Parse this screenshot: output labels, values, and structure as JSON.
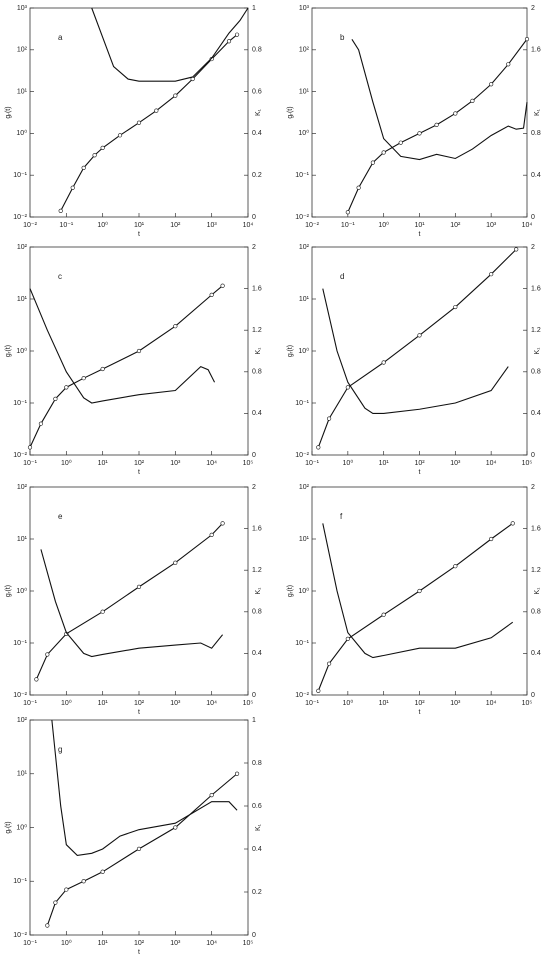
{
  "chart_data": [
    {
      "type": "line",
      "annotation": "a",
      "x_label": "t",
      "y_label": "gᵣ(t)",
      "y2_label": "K₁",
      "log_x": true,
      "log_y": true,
      "xlim": [
        0.01,
        10000
      ],
      "xticks": [
        {
          "value": 0.01,
          "label": "10⁻²"
        },
        {
          "value": 0.1,
          "label": "10⁻¹"
        },
        {
          "value": 1,
          "label": "10⁰"
        },
        {
          "value": 10,
          "label": "10¹"
        },
        {
          "value": 100,
          "label": "10²"
        },
        {
          "value": 1000,
          "label": "10³"
        },
        {
          "value": 10000,
          "label": "10⁴"
        }
      ],
      "ylim": [
        0.01,
        1000
      ],
      "yticks": [
        {
          "value": 0.01,
          "label": "10⁻²"
        },
        {
          "value": 0.1,
          "label": "10⁻¹"
        },
        {
          "value": 1,
          "label": "10⁰"
        },
        {
          "value": 10,
          "label": "10¹"
        },
        {
          "value": 100,
          "label": "10²"
        },
        {
          "value": 1000,
          "label": "10³"
        }
      ],
      "y2lim": [
        0,
        1
      ],
      "y2ticks": [
        0,
        0.2,
        0.4,
        0.6,
        0.8,
        1
      ],
      "series": [
        {
          "color": "#111111",
          "markers": true,
          "x": [
            0.07,
            0.15,
            0.3,
            0.6,
            1,
            3,
            10,
            30,
            100,
            300,
            1000,
            3000,
            5000
          ],
          "values": [
            0.014,
            0.05,
            0.15,
            0.3,
            0.45,
            0.9,
            1.8,
            3.5,
            8,
            20,
            60,
            160,
            230
          ]
        },
        {
          "color": "#111111",
          "axis": "y2",
          "x": [
            0.5,
            1,
            2,
            5,
            10,
            30,
            100,
            300,
            1000,
            3000,
            6000,
            10000
          ],
          "values": [
            1.0,
            0.86,
            0.72,
            0.66,
            0.65,
            0.65,
            0.65,
            0.67,
            0.76,
            0.88,
            0.94,
            1.0
          ]
        }
      ]
    },
    {
      "type": "line",
      "annotation": "b",
      "x_label": "t",
      "y_label": "gᵣ(t)",
      "y2_label": "K₁",
      "log_x": true,
      "log_y": true,
      "xlim": [
        0.01,
        10000
      ],
      "xticks": [
        {
          "value": 0.01,
          "label": "10⁻²"
        },
        {
          "value": 0.1,
          "label": "10⁻¹"
        },
        {
          "value": 1,
          "label": "10⁰"
        },
        {
          "value": 10,
          "label": "10¹"
        },
        {
          "value": 100,
          "label": "10²"
        },
        {
          "value": 1000,
          "label": "10³"
        },
        {
          "value": 10000,
          "label": "10⁴"
        }
      ],
      "ylim": [
        0.01,
        1000
      ],
      "yticks": [
        {
          "value": 0.01,
          "label": "10⁻²"
        },
        {
          "value": 0.1,
          "label": "10⁻¹"
        },
        {
          "value": 1,
          "label": "10⁰"
        },
        {
          "value": 10,
          "label": "10¹"
        },
        {
          "value": 100,
          "label": "10²"
        },
        {
          "value": 1000,
          "label": "10³"
        }
      ],
      "y2lim": [
        0,
        2
      ],
      "y2ticks": [
        0,
        0.4,
        0.8,
        1.6,
        2
      ],
      "series": [
        {
          "color": "#111111",
          "markers": true,
          "x": [
            0.1,
            0.2,
            0.5,
            1,
            3,
            10,
            30,
            100,
            300,
            1000,
            3000,
            10000
          ],
          "values": [
            0.013,
            0.05,
            0.2,
            0.35,
            0.6,
            1.0,
            1.6,
            3,
            6,
            15,
            45,
            180
          ]
        },
        {
          "color": "#111111",
          "axis": "y2",
          "x": [
            0.13,
            0.2,
            0.5,
            1,
            3,
            10,
            30,
            100,
            300,
            1000,
            3000,
            5000,
            8000,
            10000
          ],
          "values": [
            1.7,
            1.6,
            1.1,
            0.75,
            0.58,
            0.55,
            0.6,
            0.56,
            0.65,
            0.78,
            0.87,
            0.84,
            0.85,
            1.1
          ]
        }
      ]
    },
    {
      "type": "line",
      "annotation": "c",
      "x_label": "t",
      "y_label": "gᵣ(t)",
      "y2_label": "K₁",
      "log_x": true,
      "log_y": true,
      "xlim": [
        0.1,
        100000
      ],
      "xticks": [
        {
          "value": 0.1,
          "label": "10⁻¹"
        },
        {
          "value": 1,
          "label": "10⁰"
        },
        {
          "value": 10,
          "label": "10¹"
        },
        {
          "value": 100,
          "label": "10²"
        },
        {
          "value": 1000,
          "label": "10³"
        },
        {
          "value": 10000,
          "label": "10⁴"
        },
        {
          "value": 100000,
          "label": "10⁵"
        }
      ],
      "ylim": [
        0.01,
        100
      ],
      "yticks": [
        {
          "value": 0.01,
          "label": "10⁻²"
        },
        {
          "value": 0.1,
          "label": "10⁻¹"
        },
        {
          "value": 1,
          "label": "10⁰"
        },
        {
          "value": 10,
          "label": "10¹"
        },
        {
          "value": 100,
          "label": "10²"
        }
      ],
      "y2lim": [
        0,
        2
      ],
      "y2ticks": [
        0,
        0.4,
        0.8,
        1.2,
        1.6,
        2
      ],
      "series": [
        {
          "color": "#111111",
          "markers": true,
          "x": [
            0.1,
            0.2,
            0.5,
            1,
            3,
            10,
            100,
            1000,
            10000,
            20000
          ],
          "values": [
            0.014,
            0.04,
            0.12,
            0.2,
            0.3,
            0.45,
            1,
            3,
            12,
            18
          ]
        },
        {
          "color": "#111111",
          "axis": "y2",
          "x": [
            0.1,
            0.3,
            1,
            3,
            5,
            10,
            100,
            1000,
            5000,
            8000,
            12000
          ],
          "values": [
            1.6,
            1.2,
            0.8,
            0.55,
            0.5,
            0.52,
            0.58,
            0.62,
            0.85,
            0.82,
            0.7
          ]
        }
      ]
    },
    {
      "type": "line",
      "annotation": "d",
      "x_label": "t",
      "y_label": "gᵣ(t)",
      "y2_label": "K₁",
      "log_x": true,
      "log_y": true,
      "xlim": [
        0.1,
        100000
      ],
      "xticks": [
        {
          "value": 0.1,
          "label": "10⁻¹"
        },
        {
          "value": 1,
          "label": "10⁰"
        },
        {
          "value": 10,
          "label": "10¹"
        },
        {
          "value": 100,
          "label": "10²"
        },
        {
          "value": 1000,
          "label": "10³"
        },
        {
          "value": 10000,
          "label": "10⁴"
        },
        {
          "value": 100000,
          "label": "10⁵"
        }
      ],
      "ylim": [
        0.01,
        100
      ],
      "yticks": [
        {
          "value": 0.01,
          "label": "10⁻²"
        },
        {
          "value": 0.1,
          "label": "10⁻¹"
        },
        {
          "value": 1,
          "label": "10⁰"
        },
        {
          "value": 10,
          "label": "10¹"
        },
        {
          "value": 100,
          "label": "10²"
        }
      ],
      "y2lim": [
        0,
        2
      ],
      "y2ticks": [
        0,
        0.4,
        0.8,
        1.2,
        1.6,
        2
      ],
      "series": [
        {
          "color": "#111111",
          "markers": true,
          "x": [
            0.15,
            0.3,
            1,
            10,
            100,
            1000,
            10000,
            50000
          ],
          "values": [
            0.014,
            0.05,
            0.2,
            0.6,
            2,
            7,
            30,
            90
          ]
        },
        {
          "color": "#111111",
          "axis": "y2",
          "x": [
            0.2,
            0.5,
            1,
            3,
            5,
            10,
            100,
            1000,
            10000,
            30000
          ],
          "values": [
            1.6,
            1.0,
            0.7,
            0.45,
            0.4,
            0.4,
            0.44,
            0.5,
            0.62,
            0.85
          ]
        }
      ]
    },
    {
      "type": "line",
      "annotation": "e",
      "x_label": "t",
      "y_label": "gᵣ(t)",
      "y2_label": "K₁",
      "log_x": true,
      "log_y": true,
      "xlim": [
        0.1,
        100000
      ],
      "xticks": [
        {
          "value": 0.1,
          "label": "10⁻¹"
        },
        {
          "value": 1,
          "label": "10⁰"
        },
        {
          "value": 10,
          "label": "10¹"
        },
        {
          "value": 100,
          "label": "10²"
        },
        {
          "value": 1000,
          "label": "10³"
        },
        {
          "value": 10000,
          "label": "10⁴"
        },
        {
          "value": 100000,
          "label": "10⁵"
        }
      ],
      "ylim": [
        0.01,
        100
      ],
      "yticks": [
        {
          "value": 0.01,
          "label": "10⁻²"
        },
        {
          "value": 0.1,
          "label": "10⁻¹"
        },
        {
          "value": 1,
          "label": "10⁰"
        },
        {
          "value": 10,
          "label": "10¹"
        },
        {
          "value": 100,
          "label": "10²"
        }
      ],
      "y2lim": [
        0,
        2
      ],
      "y2ticks": [
        0,
        0.4,
        0.8,
        1.2,
        1.6,
        2
      ],
      "series": [
        {
          "color": "#111111",
          "markers": true,
          "x": [
            0.15,
            0.3,
            1,
            10,
            100,
            1000,
            10000,
            20000
          ],
          "values": [
            0.02,
            0.06,
            0.15,
            0.4,
            1.2,
            3.5,
            12,
            20
          ]
        },
        {
          "color": "#111111",
          "axis": "y2",
          "x": [
            0.2,
            0.5,
            1,
            3,
            5,
            10,
            100,
            1000,
            5000,
            10000,
            20000
          ],
          "values": [
            1.4,
            0.9,
            0.6,
            0.4,
            0.37,
            0.39,
            0.45,
            0.48,
            0.5,
            0.45,
            0.58
          ]
        }
      ]
    },
    {
      "type": "line",
      "annotation": "f",
      "x_label": "t",
      "y_label": "gᵣ(t)",
      "y2_label": "K₁",
      "log_x": true,
      "log_y": true,
      "xlim": [
        0.1,
        100000
      ],
      "xticks": [
        {
          "value": 0.1,
          "label": "10⁻¹"
        },
        {
          "value": 1,
          "label": "10⁰"
        },
        {
          "value": 10,
          "label": "10¹"
        },
        {
          "value": 100,
          "label": "10²"
        },
        {
          "value": 1000,
          "label": "10³"
        },
        {
          "value": 10000,
          "label": "10⁴"
        },
        {
          "value": 100000,
          "label": "10⁵"
        }
      ],
      "ylim": [
        0.01,
        100
      ],
      "yticks": [
        {
          "value": 0.01,
          "label": "10⁻²"
        },
        {
          "value": 0.1,
          "label": "10⁻¹"
        },
        {
          "value": 1,
          "label": "10⁰"
        },
        {
          "value": 10,
          "label": "10¹"
        },
        {
          "value": 100,
          "label": "10²"
        }
      ],
      "y2lim": [
        0,
        2
      ],
      "y2ticks": [
        0,
        0.4,
        0.8,
        1.2,
        1.6,
        2
      ],
      "series": [
        {
          "color": "#111111",
          "markers": true,
          "x": [
            0.15,
            0.3,
            1,
            10,
            100,
            1000,
            10000,
            40000
          ],
          "values": [
            0.012,
            0.04,
            0.12,
            0.35,
            1,
            3,
            10,
            20
          ]
        },
        {
          "color": "#111111",
          "axis": "y2",
          "x": [
            0.2,
            0.5,
            1,
            3,
            5,
            10,
            100,
            1000,
            10000,
            40000
          ],
          "values": [
            1.65,
            1.0,
            0.6,
            0.4,
            0.36,
            0.38,
            0.45,
            0.45,
            0.55,
            0.7
          ]
        }
      ]
    },
    {
      "type": "line",
      "annotation": "g",
      "x_label": "t",
      "y_label": "gᵣ(t)",
      "y2_label": "K₁",
      "log_x": true,
      "log_y": true,
      "xlim": [
        0.1,
        100000
      ],
      "xticks": [
        {
          "value": 0.1,
          "label": "10⁻¹"
        },
        {
          "value": 1,
          "label": "10⁰"
        },
        {
          "value": 10,
          "label": "10¹"
        },
        {
          "value": 100,
          "label": "10²"
        },
        {
          "value": 1000,
          "label": "10³"
        },
        {
          "value": 10000,
          "label": "10⁴"
        },
        {
          "value": 100000,
          "label": "10⁵"
        }
      ],
      "ylim": [
        0.01,
        100
      ],
      "yticks": [
        {
          "value": 0.01,
          "label": "10⁻²"
        },
        {
          "value": 0.1,
          "label": "10⁻¹"
        },
        {
          "value": 1,
          "label": "10⁰"
        },
        {
          "value": 10,
          "label": "10¹"
        },
        {
          "value": 100,
          "label": "10²"
        }
      ],
      "y2lim": [
        0,
        1
      ],
      "y2ticks": [
        0,
        0.2,
        0.4,
        0.6,
        0.8,
        1
      ],
      "series": [
        {
          "color": "#111111",
          "markers": true,
          "x": [
            0.3,
            0.5,
            1,
            3,
            10,
            100,
            1000,
            10000,
            50000
          ],
          "values": [
            0.015,
            0.04,
            0.07,
            0.1,
            0.15,
            0.4,
            1,
            4,
            10
          ]
        },
        {
          "color": "#111111",
          "axis": "y2",
          "x": [
            0.4,
            0.7,
            1,
            2,
            5,
            10,
            30,
            100,
            1000,
            10000,
            30000,
            50000
          ],
          "values": [
            1.0,
            0.6,
            0.42,
            0.37,
            0.38,
            0.4,
            0.46,
            0.49,
            0.52,
            0.62,
            0.62,
            0.58
          ]
        }
      ]
    }
  ]
}
